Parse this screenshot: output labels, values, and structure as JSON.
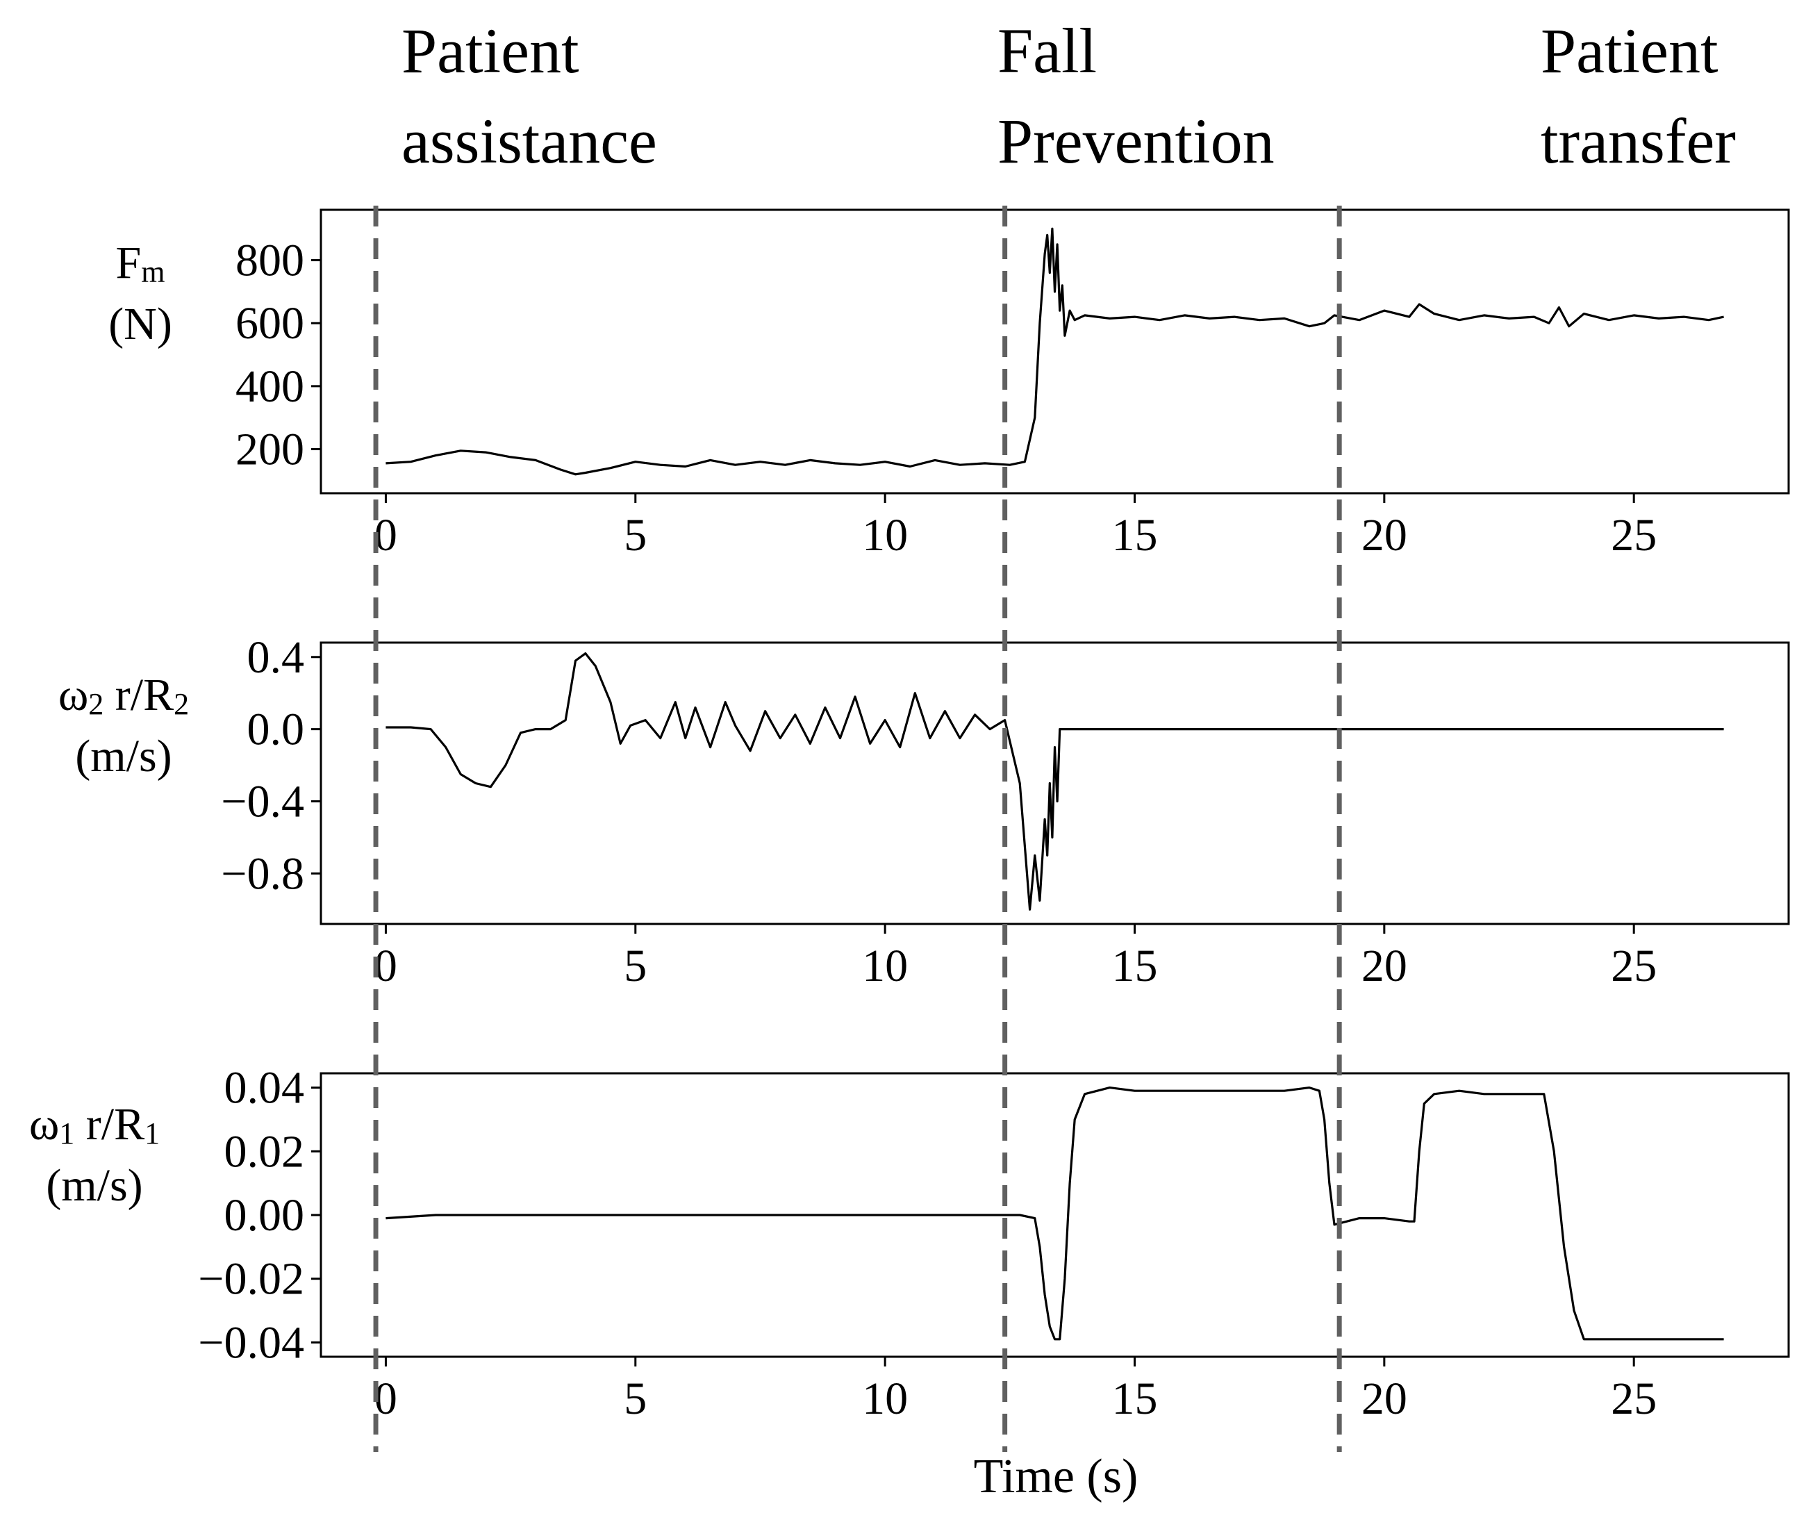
{
  "phases": [
    {
      "line1": "Patient",
      "line2": "assistance"
    },
    {
      "line1": "Fall",
      "line2": "Prevention"
    },
    {
      "line1": "Patient",
      "line2": "transfer"
    }
  ],
  "phase_boundaries_s": [
    -0.2,
    12.4,
    19.1
  ],
  "chart_data": [
    {
      "type": "line",
      "ylabel_line1": "F",
      "ylabel_sub": "m",
      "ylabel_line2": "(N)",
      "xlim": [
        -1.3,
        28.1
      ],
      "ylim": [
        60,
        960
      ],
      "yticks": [
        200,
        400,
        600,
        800
      ],
      "ytick_labels": [
        "200",
        "400",
        "600",
        "800"
      ],
      "xticks": [
        0,
        5,
        10,
        15,
        20,
        25
      ],
      "xtick_labels": [
        "0",
        "5",
        "10",
        "15",
        "20",
        "25"
      ],
      "grid": false,
      "x": [
        0,
        0.5,
        1,
        1.5,
        2,
        2.5,
        3,
        3.5,
        3.8,
        4,
        4.5,
        5,
        5.5,
        6,
        6.5,
        7,
        7.5,
        8,
        8.5,
        9,
        9.5,
        10,
        10.5,
        11,
        11.5,
        12,
        12.5,
        12.8,
        13.0,
        13.1,
        13.2,
        13.25,
        13.3,
        13.35,
        13.4,
        13.45,
        13.5,
        13.55,
        13.6,
        13.7,
        13.8,
        14,
        14.5,
        15,
        15.5,
        16,
        16.5,
        17,
        17.5,
        18,
        18.5,
        18.8,
        19,
        19.5,
        20,
        20.5,
        20.7,
        21,
        21.5,
        22,
        22.5,
        23,
        23.3,
        23.5,
        23.7,
        24,
        24.5,
        25,
        25.5,
        26,
        26.5,
        26.8
      ],
      "y": [
        155,
        160,
        180,
        195,
        190,
        175,
        165,
        135,
        120,
        125,
        140,
        160,
        150,
        145,
        165,
        150,
        160,
        150,
        165,
        155,
        150,
        160,
        145,
        165,
        150,
        155,
        150,
        160,
        300,
        600,
        820,
        880,
        760,
        900,
        700,
        850,
        640,
        720,
        560,
        640,
        610,
        625,
        615,
        620,
        610,
        625,
        615,
        620,
        610,
        615,
        590,
        600,
        625,
        610,
        640,
        620,
        660,
        630,
        610,
        625,
        615,
        620,
        600,
        650,
        590,
        630,
        610,
        625,
        615,
        620,
        610,
        620
      ]
    },
    {
      "type": "line",
      "ylabel_line1": "ω",
      "ylabel_sub": "2",
      "ylabel_mid": " r/R",
      "ylabel_sub2": "2",
      "ylabel_line2": "(m/s)",
      "xlim": [
        -1.3,
        28.1
      ],
      "ylim": [
        -1.08,
        0.48
      ],
      "yticks": [
        0.4,
        0.0,
        -0.4,
        -0.8
      ],
      "ytick_labels": [
        "0.4",
        "0.0",
        "−0.4",
        "−0.8"
      ],
      "xticks": [
        0,
        5,
        10,
        15,
        20,
        25
      ],
      "xtick_labels": [
        "0",
        "5",
        "10",
        "15",
        "20",
        "25"
      ],
      "grid": false,
      "x": [
        0,
        0.5,
        0.9,
        1.2,
        1.5,
        1.8,
        2.1,
        2.4,
        2.7,
        3,
        3.3,
        3.6,
        3.8,
        4,
        4.2,
        4.5,
        4.7,
        4.9,
        5.2,
        5.5,
        5.8,
        6.0,
        6.2,
        6.5,
        6.8,
        7.0,
        7.3,
        7.6,
        7.9,
        8.2,
        8.5,
        8.8,
        9.1,
        9.4,
        9.7,
        10.0,
        10.3,
        10.6,
        10.9,
        11.2,
        11.5,
        11.8,
        12.1,
        12.4,
        12.7,
        12.9,
        13.0,
        13.1,
        13.2,
        13.25,
        13.3,
        13.35,
        13.4,
        13.45,
        13.5,
        13.6,
        14,
        15,
        20,
        25,
        26.8
      ],
      "y": [
        0.01,
        0.01,
        0.0,
        -0.1,
        -0.25,
        -0.3,
        -0.32,
        -0.2,
        -0.02,
        0.0,
        0.0,
        0.05,
        0.38,
        0.42,
        0.35,
        0.15,
        -0.08,
        0.02,
        0.05,
        -0.05,
        0.15,
        -0.05,
        0.12,
        -0.1,
        0.15,
        0.02,
        -0.12,
        0.1,
        -0.05,
        0.08,
        -0.08,
        0.12,
        -0.05,
        0.18,
        -0.08,
        0.05,
        -0.1,
        0.2,
        -0.05,
        0.1,
        -0.05,
        0.08,
        0.0,
        0.05,
        -0.3,
        -1.0,
        -0.7,
        -0.95,
        -0.5,
        -0.7,
        -0.3,
        -0.6,
        -0.1,
        -0.4,
        0.0,
        0.0,
        0.0,
        0.0,
        0.0,
        0.0,
        0.0
      ]
    },
    {
      "type": "line",
      "ylabel_line1": "ω",
      "ylabel_sub": "1",
      "ylabel_mid": " r/R",
      "ylabel_sub2": "1",
      "ylabel_line2": "(m/s)",
      "xlabel": "Time (s)",
      "xlim": [
        -1.3,
        28.1
      ],
      "ylim": [
        -0.0445,
        0.0445
      ],
      "yticks": [
        0.04,
        0.02,
        0.0,
        -0.02,
        -0.04
      ],
      "ytick_labels": [
        "0.04",
        "0.02",
        "0.00",
        "−0.02",
        "−0.04"
      ],
      "xticks": [
        0,
        5,
        10,
        15,
        20,
        25
      ],
      "xtick_labels": [
        "0",
        "5",
        "10",
        "15",
        "20",
        "25"
      ],
      "grid": false,
      "x": [
        0,
        1,
        2,
        3,
        4,
        5,
        6,
        7,
        8,
        9,
        10,
        11,
        12,
        12.7,
        13.0,
        13.1,
        13.2,
        13.3,
        13.4,
        13.5,
        13.6,
        13.7,
        13.8,
        14.0,
        14.5,
        15,
        16,
        17,
        18,
        18.5,
        18.7,
        18.8,
        18.9,
        19.0,
        19.5,
        20,
        20.5,
        20.6,
        20.7,
        20.8,
        21.0,
        21.5,
        22,
        22.5,
        23.0,
        23.2,
        23.4,
        23.6,
        23.8,
        24.0,
        24.5,
        25,
        26,
        26.8
      ],
      "y": [
        -0.001,
        0.0,
        0.0,
        0.0,
        0.0,
        0.0,
        0.0,
        0.0,
        0.0,
        0.0,
        0.0,
        0.0,
        0.0,
        0.0,
        -0.001,
        -0.01,
        -0.025,
        -0.035,
        -0.039,
        -0.039,
        -0.02,
        0.01,
        0.03,
        0.038,
        0.04,
        0.039,
        0.039,
        0.039,
        0.039,
        0.04,
        0.039,
        0.03,
        0.01,
        -0.003,
        -0.001,
        -0.001,
        -0.002,
        -0.002,
        0.02,
        0.035,
        0.038,
        0.039,
        0.038,
        0.038,
        0.038,
        0.038,
        0.02,
        -0.01,
        -0.03,
        -0.039,
        -0.039,
        -0.039,
        -0.039,
        -0.039
      ]
    }
  ]
}
